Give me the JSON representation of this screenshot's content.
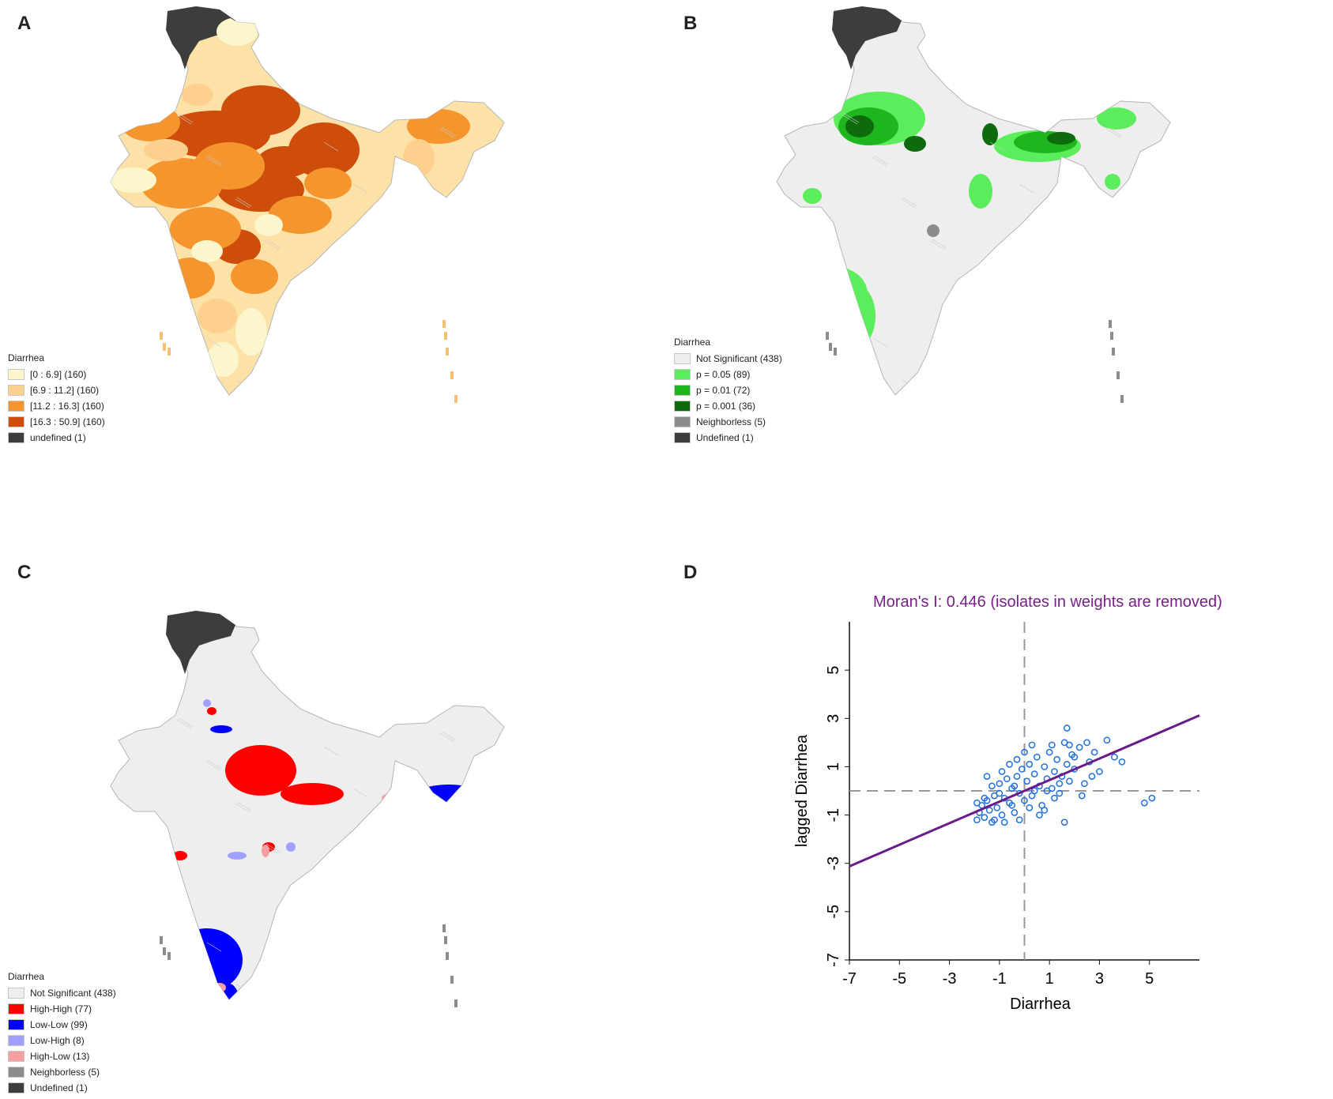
{
  "panels": {
    "a": {
      "letter": "A",
      "legend": {
        "title": "Diarrhea",
        "items": [
          {
            "label": "[0 : 6.9] (160)",
            "color": "#fdf6cd"
          },
          {
            "label": "[6.9 : 11.2] (160)",
            "color": "#fdd08e"
          },
          {
            "label": "[11.2 : 16.3] (160)",
            "color": "#f5952e"
          },
          {
            "label": "[16.3 : 50.9] (160)",
            "color": "#cf4d0b"
          },
          {
            "label": "undefined (1)",
            "color": "#3d3d3d"
          }
        ]
      }
    },
    "b": {
      "letter": "B",
      "legend": {
        "title": "Diarrhea",
        "items": [
          {
            "label": "Not Significant (438)",
            "color": "#eeeeee"
          },
          {
            "label": "p = 0.05 (89)",
            "color": "#5ced5c"
          },
          {
            "label": "p = 0.01 (72)",
            "color": "#1fb51f"
          },
          {
            "label": "p = 0.001 (36)",
            "color": "#0d6a0d"
          },
          {
            "label": "Neighborless (5)",
            "color": "#8c8c8c"
          },
          {
            "label": "Undefined (1)",
            "color": "#3d3d3d"
          }
        ]
      }
    },
    "c": {
      "letter": "C",
      "legend": {
        "title": "Diarrhea",
        "items": [
          {
            "label": "Not Significant (438)",
            "color": "#eeeeee"
          },
          {
            "label": "High-High (77)",
            "color": "#ff0000"
          },
          {
            "label": "Low-Low (99)",
            "color": "#0000ff"
          },
          {
            "label": "Low-High (8)",
            "color": "#a0a0ff"
          },
          {
            "label": "High-Low (13)",
            "color": "#f5a0a0"
          },
          {
            "label": "Neighborless (5)",
            "color": "#8c8c8c"
          },
          {
            "label": "Undefined (1)",
            "color": "#3d3d3d"
          }
        ]
      }
    },
    "d": {
      "letter": "D"
    }
  },
  "chart_data": {
    "type": "scatter",
    "title": "Moran's I: 0.446 (isolates in weights are removed)",
    "xlabel": "Diarrhea",
    "ylabel": "lagged Diarrhea",
    "xlim": [
      -7,
      7
    ],
    "ylim": [
      -7,
      7
    ],
    "xticks": [
      "-7",
      "-5",
      "-3",
      "-1",
      "1",
      "3",
      "5"
    ],
    "yticks": [
      "-7",
      "-5",
      "-3",
      "-1",
      "1",
      "3",
      "5"
    ],
    "slope": 0.446,
    "point_color": "#1f6fe0",
    "line_color": "#6a1b8a",
    "title_color": "#7a1f8a",
    "reference_lines": {
      "x": 0,
      "y": 0
    },
    "points": [
      [
        -1.9,
        -1.2
      ],
      [
        -1.8,
        -0.9
      ],
      [
        -1.7,
        -0.6
      ],
      [
        -1.6,
        -1.1
      ],
      [
        -1.5,
        -0.4
      ],
      [
        -1.4,
        -0.8
      ],
      [
        -1.3,
        -1.3
      ],
      [
        -1.2,
        -0.2
      ],
      [
        -1.1,
        -0.7
      ],
      [
        -1.0,
        0.3
      ],
      [
        -0.9,
        -1.0
      ],
      [
        -0.8,
        -0.3
      ],
      [
        -0.7,
        0.5
      ],
      [
        -0.6,
        -0.5
      ],
      [
        -0.5,
        0.1
      ],
      [
        -0.4,
        -0.9
      ],
      [
        -0.3,
        0.6
      ],
      [
        -0.2,
        -0.1
      ],
      [
        -0.1,
        0.9
      ],
      [
        0.0,
        -0.4
      ],
      [
        0.1,
        0.4
      ],
      [
        0.2,
        1.1
      ],
      [
        0.3,
        -0.2
      ],
      [
        0.4,
        0.7
      ],
      [
        0.5,
        1.4
      ],
      [
        0.6,
        0.2
      ],
      [
        0.7,
        -0.6
      ],
      [
        0.8,
        1.0
      ],
      [
        0.9,
        0.5
      ],
      [
        1.0,
        1.6
      ],
      [
        1.1,
        0.1
      ],
      [
        1.2,
        0.8
      ],
      [
        1.3,
        1.3
      ],
      [
        1.4,
        -0.1
      ],
      [
        1.5,
        0.6
      ],
      [
        1.6,
        2.0
      ],
      [
        1.7,
        1.1
      ],
      [
        1.8,
        0.4
      ],
      [
        1.9,
        1.5
      ],
      [
        2.0,
        0.9
      ],
      [
        2.2,
        1.8
      ],
      [
        2.4,
        0.3
      ],
      [
        2.6,
        1.2
      ],
      [
        2.8,
        1.6
      ],
      [
        3.0,
        0.8
      ],
      [
        3.3,
        2.1
      ],
      [
        3.6,
        1.4
      ],
      [
        3.9,
        1.2
      ],
      [
        4.8,
        -0.5
      ],
      [
        5.1,
        -0.3
      ],
      [
        1.7,
        2.6
      ],
      [
        1.6,
        -1.3
      ],
      [
        -1.5,
        0.6
      ],
      [
        -1.2,
        -1.2
      ],
      [
        -0.6,
        1.1
      ],
      [
        0.3,
        1.9
      ],
      [
        0.8,
        -0.8
      ],
      [
        2.3,
        -0.2
      ],
      [
        -0.9,
        0.8
      ],
      [
        0.0,
        1.6
      ],
      [
        -1.6,
        -0.3
      ],
      [
        -1.9,
        -0.5
      ],
      [
        -1.3,
        0.2
      ],
      [
        -0.4,
        0.2
      ],
      [
        0.4,
        0.0
      ],
      [
        1.1,
        1.9
      ],
      [
        2.0,
        1.4
      ],
      [
        2.5,
        2.0
      ],
      [
        -0.2,
        -1.2
      ],
      [
        -0.8,
        -1.3
      ],
      [
        0.6,
        -1.0
      ],
      [
        1.4,
        0.3
      ],
      [
        -1.0,
        -0.1
      ],
      [
        -0.5,
        -0.6
      ],
      [
        0.9,
        0.0
      ],
      [
        1.8,
        1.9
      ],
      [
        -0.3,
        1.3
      ],
      [
        0.2,
        -0.7
      ],
      [
        1.2,
        -0.3
      ],
      [
        2.7,
        0.6
      ]
    ]
  }
}
